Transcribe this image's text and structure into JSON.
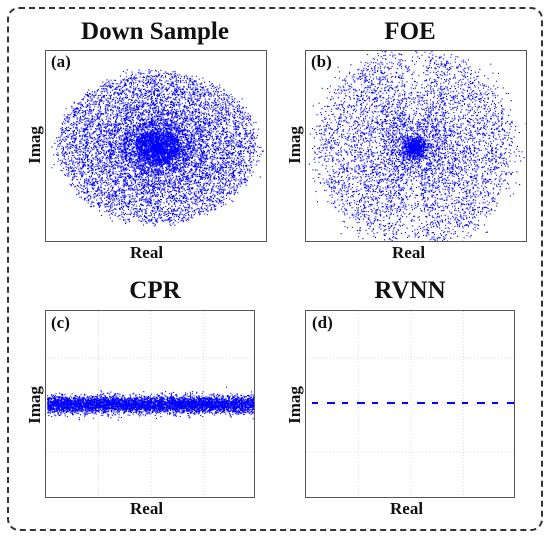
{
  "chart_data": [
    {
      "type": "scatter",
      "panel": "(a)",
      "title": "Down Sample",
      "xlabel": "Real",
      "ylabel": "Imag",
      "grid": false,
      "color": "#0000ff",
      "shape": "concentric elliptical rings"
    },
    {
      "type": "scatter",
      "panel": "(b)",
      "title": "FOE",
      "xlabel": "Real",
      "ylabel": "Imag",
      "grid": false,
      "color": "#0000ff",
      "shape": "circular rings with dense center"
    },
    {
      "type": "scatter",
      "panel": "(c)",
      "title": "CPR",
      "xlabel": "Real",
      "ylabel": "Imag",
      "grid": true,
      "color": "#0000ff",
      "shape": "thick horizontal band"
    },
    {
      "type": "scatter",
      "panel": "(d)",
      "title": "RVNN",
      "xlabel": "Real",
      "ylabel": "Imag",
      "grid": true,
      "color": "#0000ff",
      "shape": "thin dashed horizontal line"
    }
  ]
}
